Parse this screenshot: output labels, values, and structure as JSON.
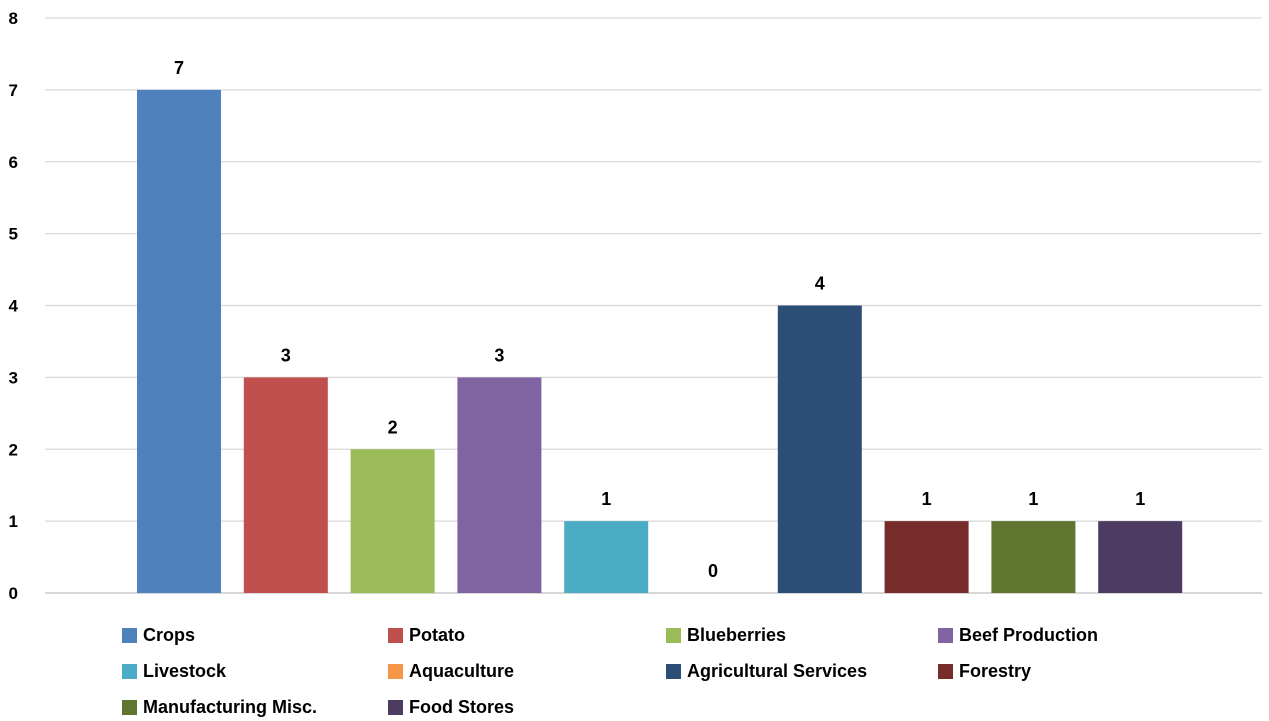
{
  "chart_data": {
    "type": "bar",
    "categories": [
      "Crops",
      "Potato",
      "Blueberries",
      "Beef Production",
      "Livestock",
      "Aquaculture",
      "Agricultural Services",
      "Forestry",
      "Manufacturing Misc.",
      "Food Stores"
    ],
    "values": [
      7,
      3,
      2,
      3,
      1,
      0,
      4,
      1,
      1,
      1
    ],
    "colors": [
      "#4F81BD",
      "#C0504D",
      "#9BBB59",
      "#8064A2",
      "#4BACC6",
      "#F79646",
      "#2C4D75",
      "#772C2A",
      "#5F7530",
      "#4D3B62"
    ],
    "ylim": [
      0,
      8
    ],
    "yticks": [
      0,
      1,
      2,
      3,
      4,
      5,
      6,
      7,
      8
    ],
    "grid": true,
    "legend_position": "bottom",
    "title": "",
    "xlabel": "",
    "ylabel": ""
  }
}
